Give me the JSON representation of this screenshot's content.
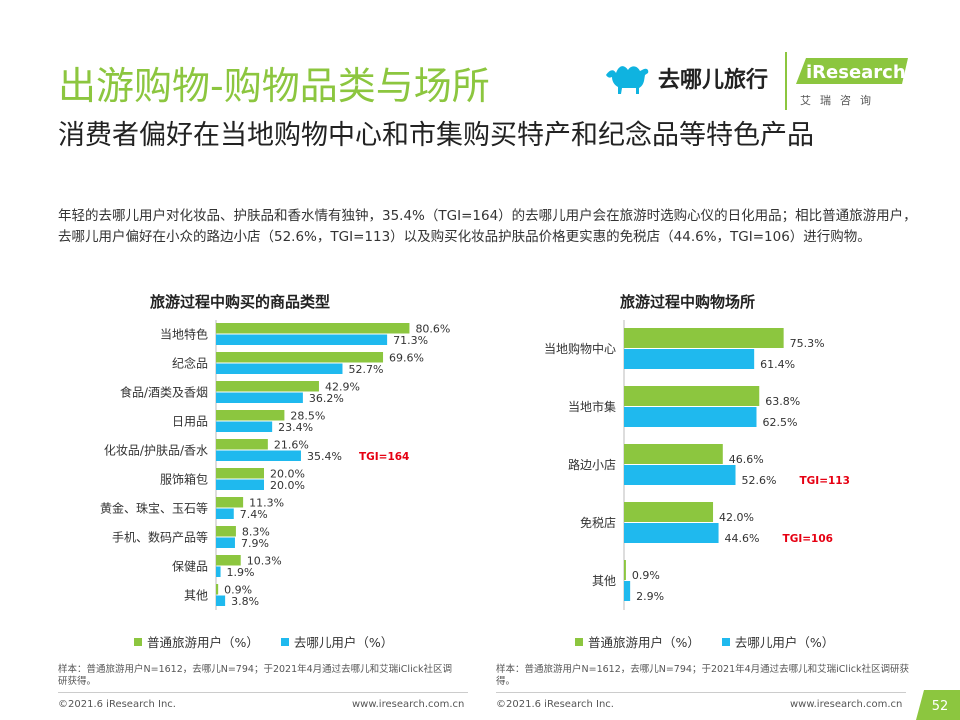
{
  "page": {
    "title": "出游购物-购物品类与场所",
    "subtitle": "消费者偏好在当地购物中心和市集购买特产和纪念品等特色产品",
    "description": "年轻的去哪儿用户对化妆品、护肤品和香水情有独钟，35.4%（TGI=164）的去哪儿用户会在旅游时选购心仪的日化用品；相比普通旅游用户，去哪儿用户偏好在小众的路边小店（52.6%，TGI=113）以及购买化妆品护肤品价格更实惠的免税店（44.6%，TGI=106）进行购物。",
    "page_number": "52"
  },
  "logos": {
    "qunar_name": "去哪儿旅行",
    "ir_name": "iResearch",
    "ir_sub": "艾瑞咨询"
  },
  "colors": {
    "green": "#8cc63f",
    "blue": "#1fb9ee",
    "tgi": "#e60012"
  },
  "chart_data": [
    {
      "type": "bar",
      "orientation": "horizontal",
      "title": "旅游过程中购买的商品类型",
      "categories": [
        "当地特色",
        "纪念品",
        "食品/酒类及香烟",
        "日用品",
        "化妆品/护肤品/香水",
        "服饰箱包",
        "黄金、珠宝、玉石等",
        "手机、数码产品等",
        "保健品",
        "其他"
      ],
      "series": [
        {
          "name": "普通旅游用户（%）",
          "color": "#8cc63f",
          "values": [
            80.6,
            69.6,
            42.9,
            28.5,
            21.6,
            20.0,
            11.3,
            8.3,
            10.3,
            0.9
          ]
        },
        {
          "name": "去哪儿用户（%）",
          "color": "#1fb9ee",
          "values": [
            71.3,
            52.7,
            36.2,
            23.4,
            35.4,
            20.0,
            7.4,
            7.9,
            1.9,
            3.8
          ]
        }
      ],
      "value_labels": [
        [
          "80.6%",
          "69.6%",
          "42.9%",
          "28.5%",
          "21.6%",
          "20.0%",
          "11.3%",
          "8.3%",
          "10.3%",
          "0.9%"
        ],
        [
          "71.3%",
          "52.7%",
          "36.2%",
          "23.4%",
          "35.4%",
          "20.0%",
          "7.4%",
          "7.9%",
          "1.9%",
          "3.8%"
        ]
      ],
      "annotations": [
        {
          "category_index": 4,
          "series_index": 1,
          "text": "TGI=164"
        }
      ],
      "xlim": [
        0,
        100
      ],
      "legend": [
        "普通旅游用户（%）",
        "去哪儿用户（%）"
      ],
      "legend_position": "bottom",
      "note": "样本：普通旅游用户N=1612，去哪儿N=794；于2021年4月通过去哪儿和艾瑞iClick社区调研获得。"
    },
    {
      "type": "bar",
      "orientation": "horizontal",
      "title": "旅游过程中购物场所",
      "categories": [
        "当地购物中心",
        "当地市集",
        "路边小店",
        "免税店",
        "其他"
      ],
      "series": [
        {
          "name": "普通旅游用户（%）",
          "color": "#8cc63f",
          "values": [
            75.3,
            63.8,
            46.6,
            42.0,
            0.9
          ]
        },
        {
          "name": "去哪儿用户（%）",
          "color": "#1fb9ee",
          "values": [
            61.4,
            62.5,
            52.6,
            44.6,
            2.9
          ]
        }
      ],
      "value_labels": [
        [
          "75.3%",
          "63.8%",
          "46.6%",
          "42.0%",
          "0.9%"
        ],
        [
          "61.4%",
          "62.5%",
          "52.6%",
          "44.6%",
          "2.9%"
        ]
      ],
      "annotations": [
        {
          "category_index": 2,
          "series_index": 1,
          "text": "TGI=113"
        },
        {
          "category_index": 3,
          "series_index": 1,
          "text": "TGI=106"
        }
      ],
      "xlim": [
        0,
        100
      ],
      "legend": [
        "普通旅游用户（%）",
        "去哪儿用户（%）"
      ],
      "legend_position": "bottom",
      "note": "样本：普通旅游用户N=1612，去哪儿N=794；于2021年4月通过去哪儿和艾瑞iClick社区调研获得。"
    }
  ],
  "footer": {
    "left_copyright": "©2021.6 iResearch Inc.",
    "left_url": "www.iresearch.com.cn",
    "right_copyright": "©2021.6 iResearch Inc.",
    "right_url": "www.iresearch.com.cn"
  }
}
